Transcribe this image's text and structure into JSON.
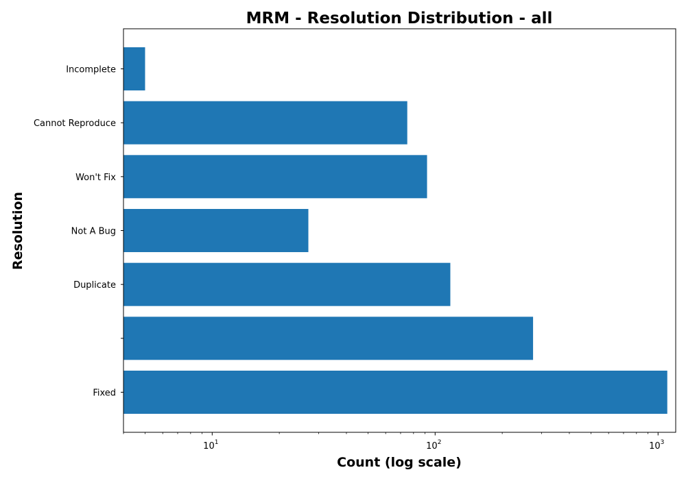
{
  "chart_data": {
    "type": "bar",
    "orientation": "horizontal",
    "title": "MRM - Resolution Distribution - all",
    "xlabel": "Count (log scale)",
    "ylabel": "Resolution",
    "xscale": "log",
    "xlim": [
      4,
      1200
    ],
    "categories": [
      "Fixed",
      "",
      "Duplicate",
      "Not A Bug",
      "Won't Fix",
      "Cannot Reproduce",
      "Incomplete"
    ],
    "values": [
      1100,
      275,
      117,
      27,
      92,
      75,
      5
    ],
    "x_ticks": [
      {
        "value": 10,
        "base": "10",
        "exp": "1"
      },
      {
        "value": 100,
        "base": "10",
        "exp": "2"
      },
      {
        "value": 1000,
        "base": "10",
        "exp": "3"
      }
    ],
    "bar_color": "#1f77b4",
    "grid": false,
    "legend": "none"
  }
}
